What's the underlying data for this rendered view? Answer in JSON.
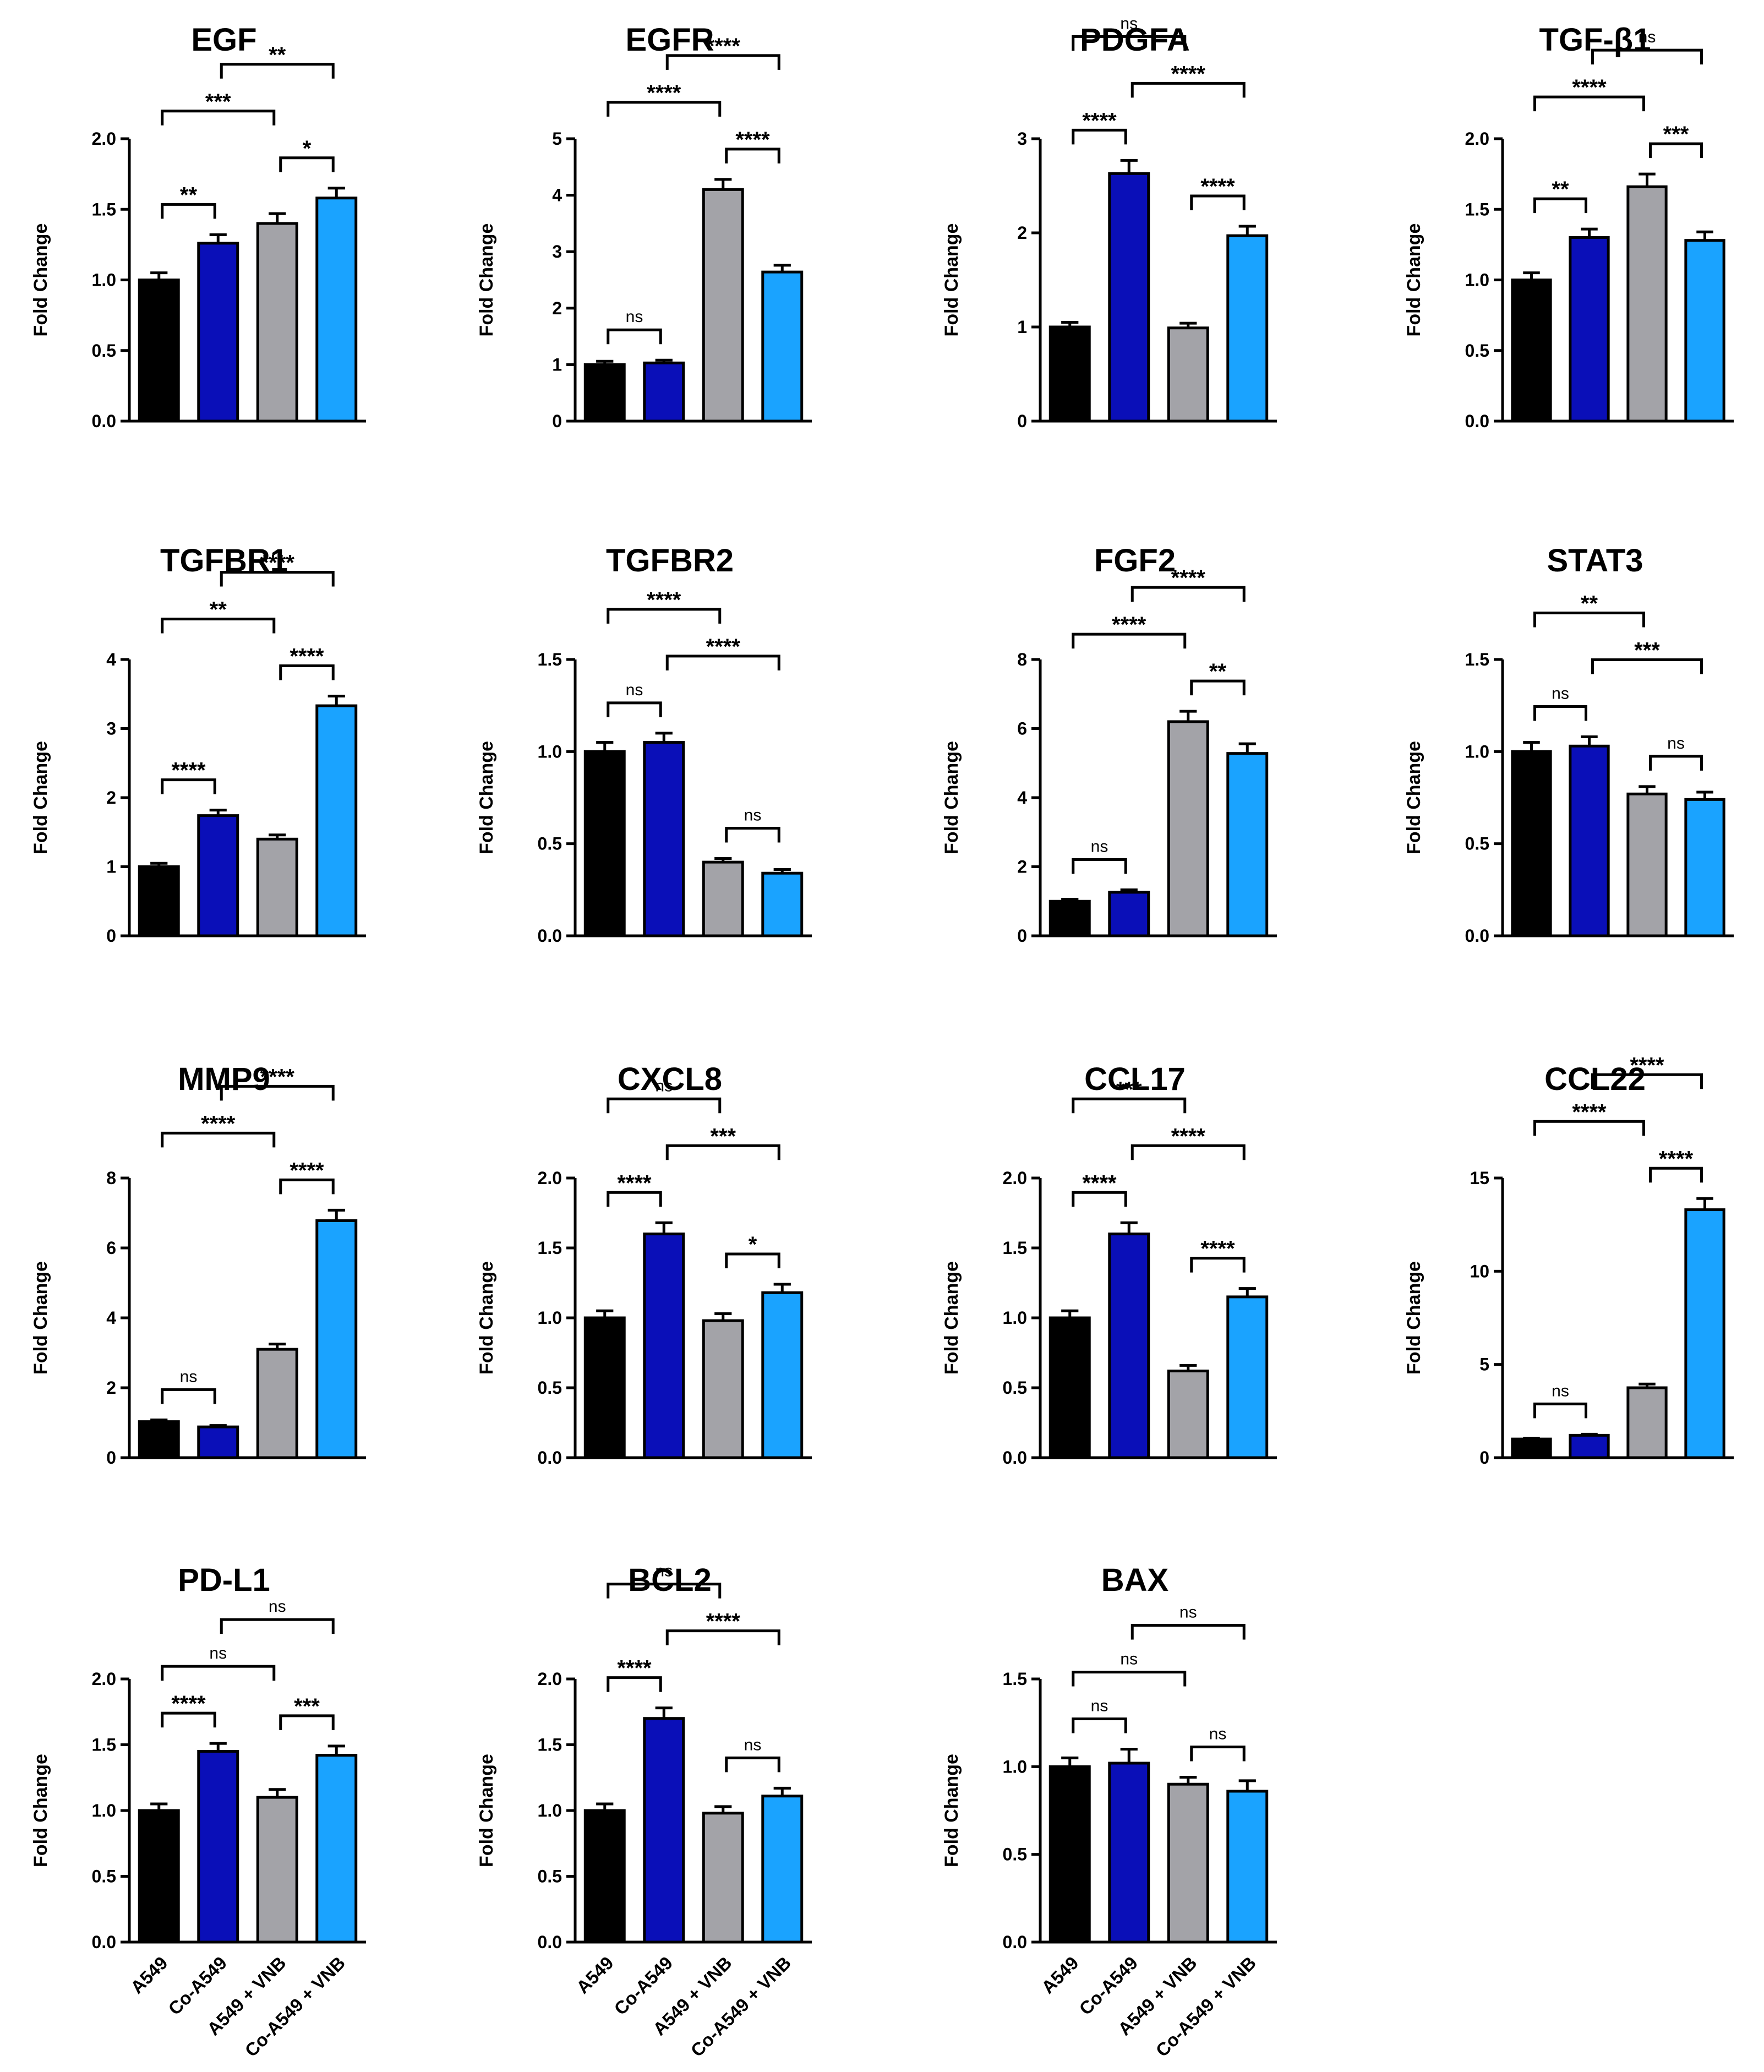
{
  "figure": {
    "ylabel": "Fold Change",
    "groups": [
      "A549",
      "Co-A549",
      "A549 + VNB",
      "Co-A549 + VNB"
    ],
    "colors": [
      "#000000",
      "#0a0fb8",
      "#a3a3a8",
      "#1aa3ff"
    ]
  },
  "chart_data": [
    {
      "type": "bar",
      "title": "EGF",
      "ylabel": "Fold Change",
      "categories": [
        "A549",
        "Co-A549",
        "A549 + VNB",
        "Co-A549 + VNB"
      ],
      "values": [
        1.0,
        1.26,
        1.4,
        1.58
      ],
      "errors": [
        0.05,
        0.06,
        0.07,
        0.07
      ],
      "ylim": [
        0,
        2.0
      ],
      "yticks": [
        "0.0",
        "0.5",
        "1.0",
        "1.5",
        "2.0"
      ],
      "comparisons": [
        {
          "from": 0,
          "to": 1,
          "label": "**"
        },
        {
          "from": 0,
          "to": 2,
          "label": "***"
        },
        {
          "from": 2,
          "to": 3,
          "label": "*"
        },
        {
          "from": 1,
          "to": 3,
          "label": "**"
        }
      ]
    },
    {
      "type": "bar",
      "title": "EGFR",
      "ylabel": "Fold Change",
      "categories": [
        "A549",
        "Co-A549",
        "A549 + VNB",
        "Co-A549 + VNB"
      ],
      "values": [
        1.0,
        1.03,
        4.1,
        2.64
      ],
      "errors": [
        0.06,
        0.05,
        0.18,
        0.12
      ],
      "ylim": [
        0,
        5
      ],
      "yticks": [
        "0",
        "1",
        "2",
        "3",
        "4",
        "5"
      ],
      "comparisons": [
        {
          "from": 0,
          "to": 1,
          "label": "ns"
        },
        {
          "from": 0,
          "to": 2,
          "label": "****"
        },
        {
          "from": 2,
          "to": 3,
          "label": "****"
        },
        {
          "from": 1,
          "to": 3,
          "label": "****"
        }
      ]
    },
    {
      "type": "bar",
      "title": "PDGFA",
      "ylabel": "Fold Change",
      "categories": [
        "A549",
        "Co-A549",
        "A549 + VNB",
        "Co-A549 + VNB"
      ],
      "values": [
        1.0,
        2.63,
        0.99,
        1.97
      ],
      "errors": [
        0.05,
        0.14,
        0.05,
        0.1
      ],
      "ylim": [
        0,
        3
      ],
      "yticks": [
        "0",
        "1",
        "2",
        "3"
      ],
      "comparisons": [
        {
          "from": 0,
          "to": 1,
          "label": "****"
        },
        {
          "from": 1,
          "to": 3,
          "label": "****"
        },
        {
          "from": 2,
          "to": 3,
          "label": "****"
        },
        {
          "from": 0,
          "to": 2,
          "label": "ns"
        }
      ]
    },
    {
      "type": "bar",
      "title": "TGF-β1",
      "ylabel": "Fold Change",
      "categories": [
        "A549",
        "Co-A549",
        "A549 + VNB",
        "Co-A549 + VNB"
      ],
      "values": [
        1.0,
        1.3,
        1.66,
        1.28
      ],
      "errors": [
        0.05,
        0.06,
        0.09,
        0.06
      ],
      "ylim": [
        0,
        2.0
      ],
      "yticks": [
        "0.0",
        "0.5",
        "1.0",
        "1.5",
        "2.0"
      ],
      "comparisons": [
        {
          "from": 0,
          "to": 1,
          "label": "**"
        },
        {
          "from": 0,
          "to": 2,
          "label": "****"
        },
        {
          "from": 2,
          "to": 3,
          "label": "***"
        },
        {
          "from": 1,
          "to": 3,
          "label": "ns"
        }
      ]
    },
    {
      "type": "bar",
      "title": "TGFBR1",
      "ylabel": "Fold Change",
      "categories": [
        "A549",
        "Co-A549",
        "A549 + VNB",
        "Co-A549 + VNB"
      ],
      "values": [
        1.0,
        1.74,
        1.4,
        3.33
      ],
      "errors": [
        0.05,
        0.08,
        0.06,
        0.14
      ],
      "ylim": [
        0,
        4
      ],
      "yticks": [
        "0",
        "1",
        "2",
        "3",
        "4"
      ],
      "comparisons": [
        {
          "from": 0,
          "to": 1,
          "label": "****"
        },
        {
          "from": 0,
          "to": 2,
          "label": "**"
        },
        {
          "from": 2,
          "to": 3,
          "label": "****"
        },
        {
          "from": 1,
          "to": 3,
          "label": "****"
        }
      ]
    },
    {
      "type": "bar",
      "title": "TGFBR2",
      "ylabel": "Fold Change",
      "categories": [
        "A549",
        "Co-A549",
        "A549 + VNB",
        "Co-A549 + VNB"
      ],
      "values": [
        1.0,
        1.05,
        0.4,
        0.34
      ],
      "errors": [
        0.05,
        0.05,
        0.02,
        0.02
      ],
      "ylim": [
        0,
        1.5
      ],
      "yticks": [
        "0.0",
        "0.5",
        "1.0",
        "1.5"
      ],
      "comparisons": [
        {
          "from": 0,
          "to": 1,
          "label": "ns"
        },
        {
          "from": 2,
          "to": 3,
          "label": "ns"
        },
        {
          "from": 1,
          "to": 3,
          "label": "****"
        },
        {
          "from": 0,
          "to": 2,
          "label": "****"
        }
      ]
    },
    {
      "type": "bar",
      "title": "FGF2",
      "ylabel": "Fold Change",
      "categories": [
        "A549",
        "Co-A549",
        "A549 + VNB",
        "Co-A549 + VNB"
      ],
      "values": [
        1.0,
        1.26,
        6.2,
        5.28
      ],
      "errors": [
        0.06,
        0.07,
        0.3,
        0.28
      ],
      "ylim": [
        0,
        8
      ],
      "yticks": [
        "0",
        "2",
        "4",
        "6",
        "8"
      ],
      "comparisons": [
        {
          "from": 0,
          "to": 1,
          "label": "ns"
        },
        {
          "from": 0,
          "to": 2,
          "label": "****"
        },
        {
          "from": 2,
          "to": 3,
          "label": "**"
        },
        {
          "from": 1,
          "to": 3,
          "label": "****"
        }
      ]
    },
    {
      "type": "bar",
      "title": "STAT3",
      "ylabel": "Fold Change",
      "categories": [
        "A549",
        "Co-A549",
        "A549 + VNB",
        "Co-A549 + VNB"
      ],
      "values": [
        1.0,
        1.03,
        0.77,
        0.74
      ],
      "errors": [
        0.05,
        0.05,
        0.04,
        0.04
      ],
      "ylim": [
        0,
        1.5
      ],
      "yticks": [
        "0.0",
        "0.5",
        "1.0",
        "1.5"
      ],
      "comparisons": [
        {
          "from": 0,
          "to": 1,
          "label": "ns"
        },
        {
          "from": 2,
          "to": 3,
          "label": "ns"
        },
        {
          "from": 1,
          "to": 3,
          "label": "***"
        },
        {
          "from": 0,
          "to": 2,
          "label": "**"
        }
      ]
    },
    {
      "type": "bar",
      "title": "MMP9",
      "ylabel": "Fold Change",
      "categories": [
        "A549",
        "Co-A549",
        "A549 + VNB",
        "Co-A549 + VNB"
      ],
      "values": [
        1.03,
        0.88,
        3.1,
        6.78
      ],
      "errors": [
        0.05,
        0.04,
        0.15,
        0.3
      ],
      "ylim": [
        0,
        8
      ],
      "yticks": [
        "0",
        "2",
        "4",
        "6",
        "8"
      ],
      "comparisons": [
        {
          "from": 0,
          "to": 1,
          "label": "ns"
        },
        {
          "from": 0,
          "to": 2,
          "label": "****"
        },
        {
          "from": 2,
          "to": 3,
          "label": "****"
        },
        {
          "from": 1,
          "to": 3,
          "label": "****"
        }
      ]
    },
    {
      "type": "bar",
      "title": "CXCL8",
      "ylabel": "Fold Change",
      "categories": [
        "A549",
        "Co-A549",
        "A549 + VNB",
        "Co-A549 + VNB"
      ],
      "values": [
        1.0,
        1.6,
        0.98,
        1.18
      ],
      "errors": [
        0.05,
        0.08,
        0.05,
        0.06
      ],
      "ylim": [
        0,
        2.0
      ],
      "yticks": [
        "0.0",
        "0.5",
        "1.0",
        "1.5",
        "2.0"
      ],
      "comparisons": [
        {
          "from": 0,
          "to": 1,
          "label": "****"
        },
        {
          "from": 2,
          "to": 3,
          "label": "*"
        },
        {
          "from": 1,
          "to": 3,
          "label": "***"
        },
        {
          "from": 0,
          "to": 2,
          "label": "ns"
        }
      ]
    },
    {
      "type": "bar",
      "title": "CCL17",
      "ylabel": "Fold Change",
      "categories": [
        "A549",
        "Co-A549",
        "A549 + VNB",
        "Co-A549 + VNB"
      ],
      "values": [
        1.0,
        1.6,
        0.62,
        1.15
      ],
      "errors": [
        0.05,
        0.08,
        0.04,
        0.06
      ],
      "ylim": [
        0,
        2.0
      ],
      "yticks": [
        "0.0",
        "0.5",
        "1.0",
        "1.5",
        "2.0"
      ],
      "comparisons": [
        {
          "from": 0,
          "to": 1,
          "label": "****"
        },
        {
          "from": 2,
          "to": 3,
          "label": "****"
        },
        {
          "from": 1,
          "to": 3,
          "label": "****"
        },
        {
          "from": 0,
          "to": 2,
          "label": "***"
        }
      ]
    },
    {
      "type": "bar",
      "title": "CCL22",
      "ylabel": "Fold Change",
      "categories": [
        "A549",
        "Co-A549",
        "A549 + VNB",
        "Co-A549 + VNB"
      ],
      "values": [
        1.0,
        1.2,
        3.75,
        13.3
      ],
      "errors": [
        0.05,
        0.06,
        0.2,
        0.6
      ],
      "ylim": [
        0,
        15
      ],
      "yticks": [
        "0",
        "5",
        "10",
        "15"
      ],
      "comparisons": [
        {
          "from": 0,
          "to": 1,
          "label": "ns"
        },
        {
          "from": 0,
          "to": 2,
          "label": "****"
        },
        {
          "from": 2,
          "to": 3,
          "label": "****"
        },
        {
          "from": 1,
          "to": 3,
          "label": "****"
        }
      ]
    },
    {
      "type": "bar",
      "title": "PD-L1",
      "ylabel": "Fold Change",
      "categories": [
        "A549",
        "Co-A549",
        "A549 + VNB",
        "Co-A549 + VNB"
      ],
      "values": [
        1.0,
        1.45,
        1.1,
        1.42
      ],
      "errors": [
        0.05,
        0.06,
        0.06,
        0.07
      ],
      "ylim": [
        0,
        2.0
      ],
      "yticks": [
        "0.0",
        "0.5",
        "1.0",
        "1.5",
        "2.0"
      ],
      "comparisons": [
        {
          "from": 0,
          "to": 1,
          "label": "****"
        },
        {
          "from": 2,
          "to": 3,
          "label": "***"
        },
        {
          "from": 0,
          "to": 2,
          "label": "ns"
        },
        {
          "from": 1,
          "to": 3,
          "label": "ns"
        }
      ]
    },
    {
      "type": "bar",
      "title": "BCL2",
      "ylabel": "Fold Change",
      "categories": [
        "A549",
        "Co-A549",
        "A549 + VNB",
        "Co-A549 + VNB"
      ],
      "values": [
        1.0,
        1.7,
        0.98,
        1.11
      ],
      "errors": [
        0.05,
        0.08,
        0.05,
        0.06
      ],
      "ylim": [
        0,
        2.0
      ],
      "yticks": [
        "0.0",
        "0.5",
        "1.0",
        "1.5",
        "2.0"
      ],
      "comparisons": [
        {
          "from": 0,
          "to": 1,
          "label": "****"
        },
        {
          "from": 2,
          "to": 3,
          "label": "ns"
        },
        {
          "from": 1,
          "to": 3,
          "label": "****"
        },
        {
          "from": 0,
          "to": 2,
          "label": "ns"
        }
      ]
    },
    {
      "type": "bar",
      "title": "BAX",
      "ylabel": "Fold Change",
      "categories": [
        "A549",
        "Co-A549",
        "A549 + VNB",
        "Co-A549 + VNB"
      ],
      "values": [
        1.0,
        1.02,
        0.9,
        0.86
      ],
      "errors": [
        0.05,
        0.08,
        0.04,
        0.06
      ],
      "ylim": [
        0,
        1.5
      ],
      "yticks": [
        "0.0",
        "0.5",
        "1.0",
        "1.5"
      ],
      "comparisons": [
        {
          "from": 0,
          "to": 1,
          "label": "ns"
        },
        {
          "from": 2,
          "to": 3,
          "label": "ns"
        },
        {
          "from": 0,
          "to": 2,
          "label": "ns"
        },
        {
          "from": 1,
          "to": 3,
          "label": "ns"
        }
      ]
    }
  ]
}
